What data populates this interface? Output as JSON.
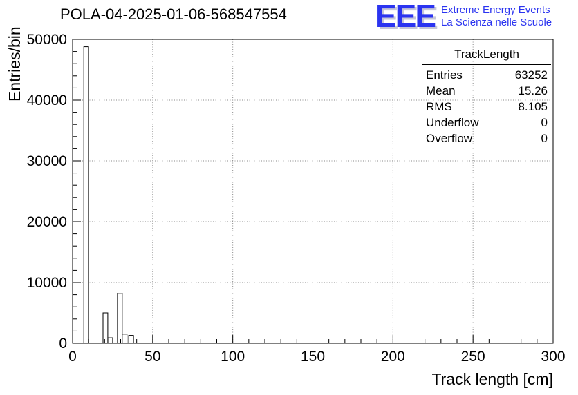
{
  "header": {
    "title": "POLA-04-2025-01-06-568547554"
  },
  "logo": {
    "acronym": "EEE",
    "line1": "Extreme Energy Events",
    "line2": "La Scienza nelle Scuole",
    "color": "#2b34f0",
    "shadow_color": "#c6c6d8"
  },
  "stats": {
    "title": "TrackLength",
    "rows": [
      {
        "label": "Entries",
        "value": "63252"
      },
      {
        "label": "Mean",
        "value": "15.26"
      },
      {
        "label": "RMS",
        "value": "8.105"
      },
      {
        "label": "Underflow",
        "value": "0"
      },
      {
        "label": "Overflow",
        "value": "0"
      }
    ]
  },
  "chart_data": {
    "type": "bar",
    "title": "POLA-04-2025-01-06-568547554",
    "xlabel": "Track length [cm]",
    "ylabel": "Entries/bin",
    "xlim": [
      0,
      300
    ],
    "ylim": [
      0,
      50000
    ],
    "x_major_ticks": [
      0,
      50,
      100,
      150,
      200,
      250,
      300
    ],
    "x_minor_step": 10,
    "y_major_ticks": [
      0,
      10000,
      20000,
      30000,
      40000,
      50000
    ],
    "y_minor_step": 2000,
    "grid": true,
    "grid_color": "#8a8a8a",
    "frame_color": "#000000",
    "bar_fill": "#ffffff",
    "bar_stroke": "#000000",
    "legend_position": "none",
    "bins": [
      {
        "x0": 7,
        "x1": 10,
        "count": 48800
      },
      {
        "x0": 19,
        "x1": 22,
        "count": 5000
      },
      {
        "x0": 22,
        "x1": 25,
        "count": 900
      },
      {
        "x0": 28,
        "x1": 31,
        "count": 8200
      },
      {
        "x0": 31,
        "x1": 34,
        "count": 1500
      },
      {
        "x0": 35,
        "x1": 38,
        "count": 1300
      }
    ]
  }
}
